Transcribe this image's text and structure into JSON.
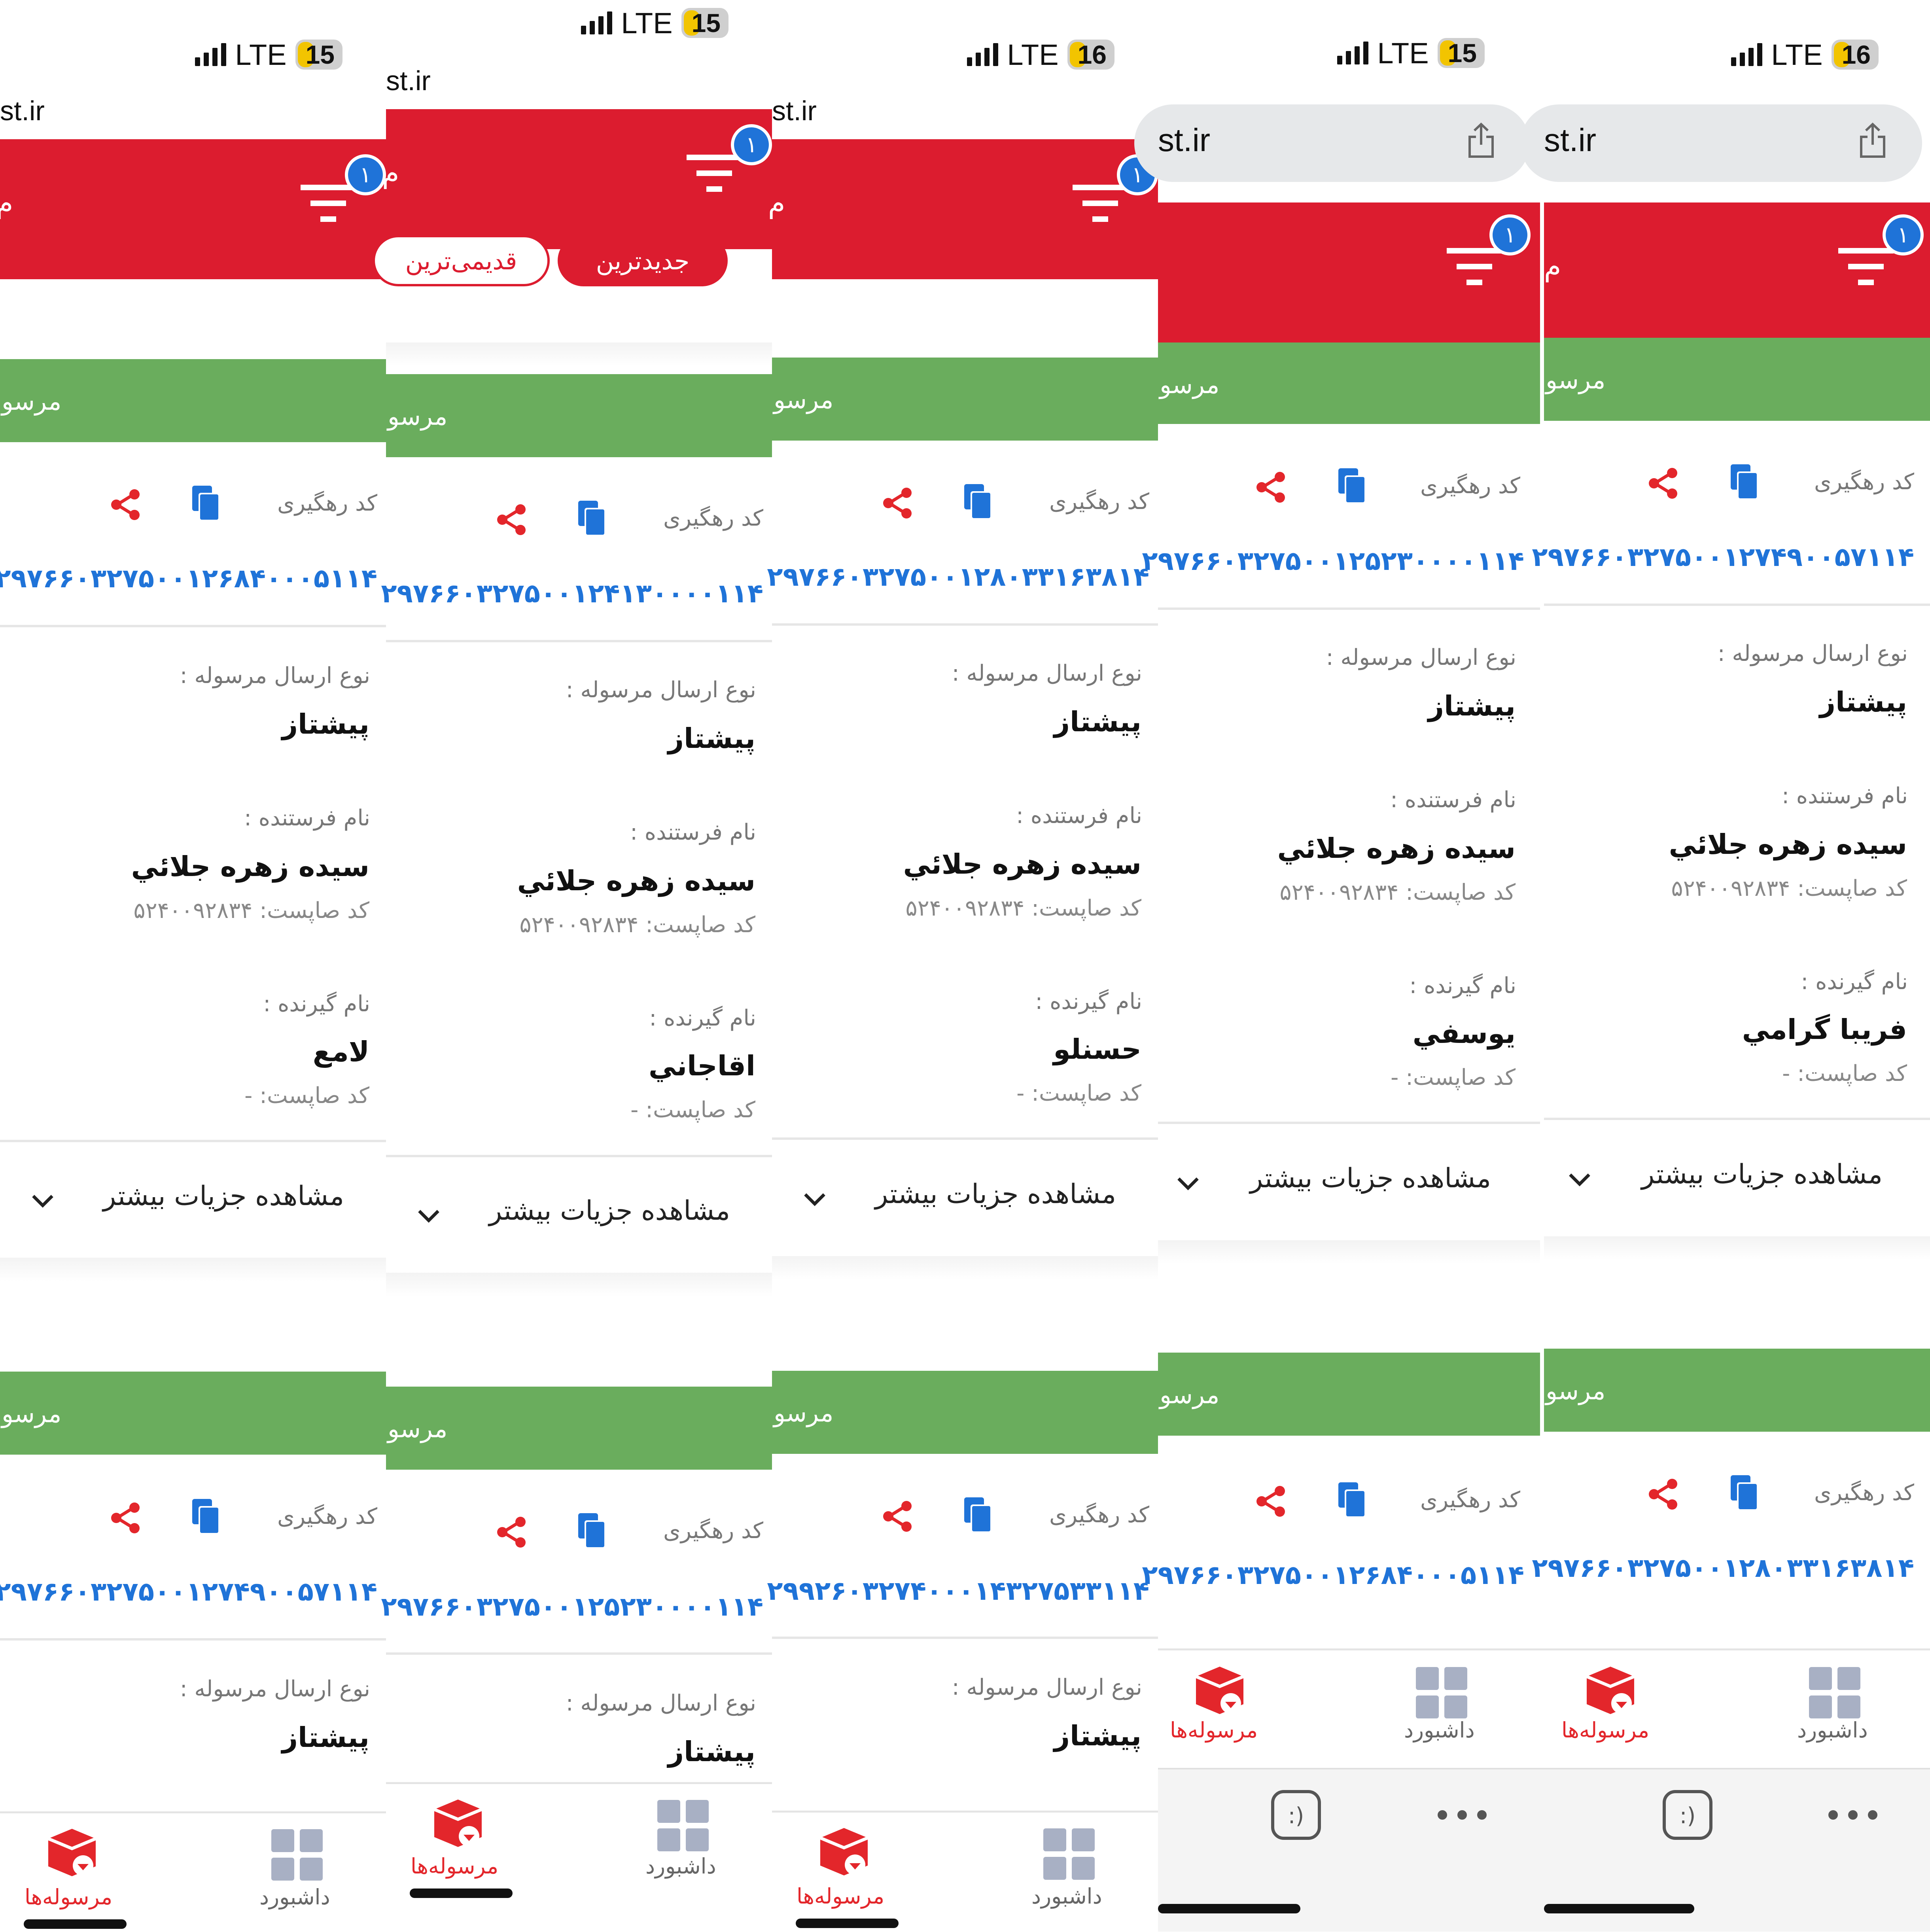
{
  "url_fragment": "st.ir",
  "red_header_letter": "م",
  "filter_badge": "۱",
  "sort": {
    "newest": "جدیدترین",
    "oldest": "قدیمی‌ترین"
  },
  "card": {
    "header": "مرسو",
    "tracking_label": "کد رهگیری",
    "send_type_label": "نوع ارسال مرسوله :",
    "send_type": "پیشتاز",
    "sender_label": "نام فرستنده :",
    "sender_name": "سیده زهره جلائي",
    "sender_code": "کد صاپست: ۵۲۴۰۰۹۲۸۳۴",
    "receiver_label": "نام گیرنده :",
    "receiver_code": "کد صاپست: -",
    "more_details": "مشاهده جزیات بیشتر"
  },
  "nav": {
    "parcels": "مرسوله‌ها",
    "dashboard": "داشبورد"
  },
  "colors": {
    "red": "#dc1c2f",
    "green": "#6aad5d",
    "blue": "#1f73d8",
    "battery": "#f2c400"
  },
  "icons": [
    "signal-icon",
    "battery-icon",
    "filter-icon",
    "share-icon",
    "copy-icon",
    "chevron-down-icon",
    "parcel-box-icon",
    "dashboard-grid-icon",
    "ios-share-icon",
    "ellipsis-icon",
    "smiley-icon"
  ],
  "screens": [
    {
      "battery": "15",
      "lte": "LTE",
      "receiver1": "لامع",
      "track1": "۲۹۷۶۶۰۳۲۷۵۰۰۱۲۶۸۴۰۰۰۵۱۱۴",
      "track2": "۲۹۷۶۶۰۳۲۷۵۰۰۱۲۷۴۹۰۰۵۷۱۱۴"
    },
    {
      "battery": "15",
      "lte": "LTE",
      "receiver1": "اقاجاني",
      "track1": "۲۹۷۶۶۰۳۲۷۵۰۰۱۲۴۱۳۰۰۰۰۱۱۴",
      "track2": "۲۹۷۶۶۰۳۲۷۵۰۰۱۲۵۲۳۰۰۰۰۱۱۴"
    },
    {
      "battery": "16",
      "lte": "LTE",
      "receiver1": "حسنلو",
      "track1": "۲۹۷۶۶۰۳۲۷۵۰۰۱۲۸۰۳۳۱۶۳۸۱۴",
      "track2": "۲۹۹۲۶۰۳۲۷۴۰۰۰۱۴۳۲۷۵۳۳۱۱۴"
    },
    {
      "battery": "15",
      "lte": "LTE",
      "receiver1": "یوسفي",
      "track1": "۲۹۷۶۶۰۳۲۷۵۰۰۱۲۵۲۳۰۰۰۰۱۱۴",
      "track2": "۲۹۷۶۶۰۳۲۷۵۰۰۱۲۶۸۴۰۰۰۵۱۱۴"
    },
    {
      "battery": "16",
      "lte": "LTE",
      "receiver1": "فریبا گرامي",
      "track1": "۲۹۷۶۶۰۳۲۷۵۰۰۱۲۷۴۹۰۰۵۷۱۱۴",
      "track2": "۲۹۷۶۶۰۳۲۷۵۰۰۱۲۸۰۳۳۱۶۳۸۱۴"
    }
  ]
}
